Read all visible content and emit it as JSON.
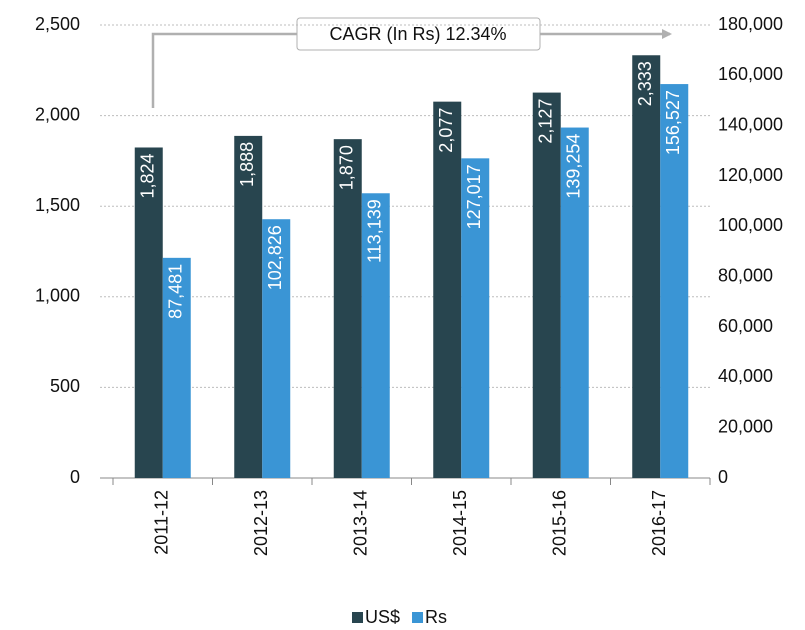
{
  "chart_data": {
    "type": "bar",
    "annotation": "CAGR (In Rs) 12.34%",
    "categories": [
      "2011-12",
      "2012-13",
      "2013-14",
      "2014-15",
      "2015-16",
      "2016-17"
    ],
    "series": [
      {
        "name": "US$",
        "color": "#28454f",
        "values": [
          1824,
          1888,
          1870,
          2077,
          2127,
          2333
        ],
        "value_labels": [
          "1,824",
          "1,888",
          "1,870",
          "2,077",
          "2,127",
          "2,333"
        ]
      },
      {
        "name": "Rs",
        "color": "#3a95d5",
        "axis": "y2",
        "values": [
          87481,
          102826,
          113139,
          127017,
          139254,
          156527
        ],
        "value_labels": [
          "87,481",
          "102,826",
          "113,139",
          "127,017",
          "139,254",
          "156,527"
        ]
      }
    ],
    "ylim": [
      0,
      2500
    ],
    "yticks": [
      0,
      500,
      {
        "value": 1000,
        "label": "1,000"
      },
      {
        "value": 1500,
        "label": "1,500"
      },
      {
        "value": 2000,
        "label": "2,000"
      },
      {
        "value": 2500,
        "label": "2,500"
      }
    ],
    "y2lim": [
      0,
      180000
    ],
    "y2ticks": [
      0,
      {
        "value": 20000,
        "label": "20,000"
      },
      {
        "value": 40000,
        "label": "40,000"
      },
      {
        "value": 60000,
        "label": "60,000"
      },
      {
        "value": 80000,
        "label": "80,000"
      },
      {
        "value": 100000,
        "label": "100,000"
      },
      {
        "value": 120000,
        "label": "120,000"
      },
      {
        "value": 140000,
        "label": "140,000"
      },
      {
        "value": 160000,
        "label": "160,000"
      },
      {
        "value": 180000,
        "label": "180,000"
      }
    ],
    "grid": true
  }
}
